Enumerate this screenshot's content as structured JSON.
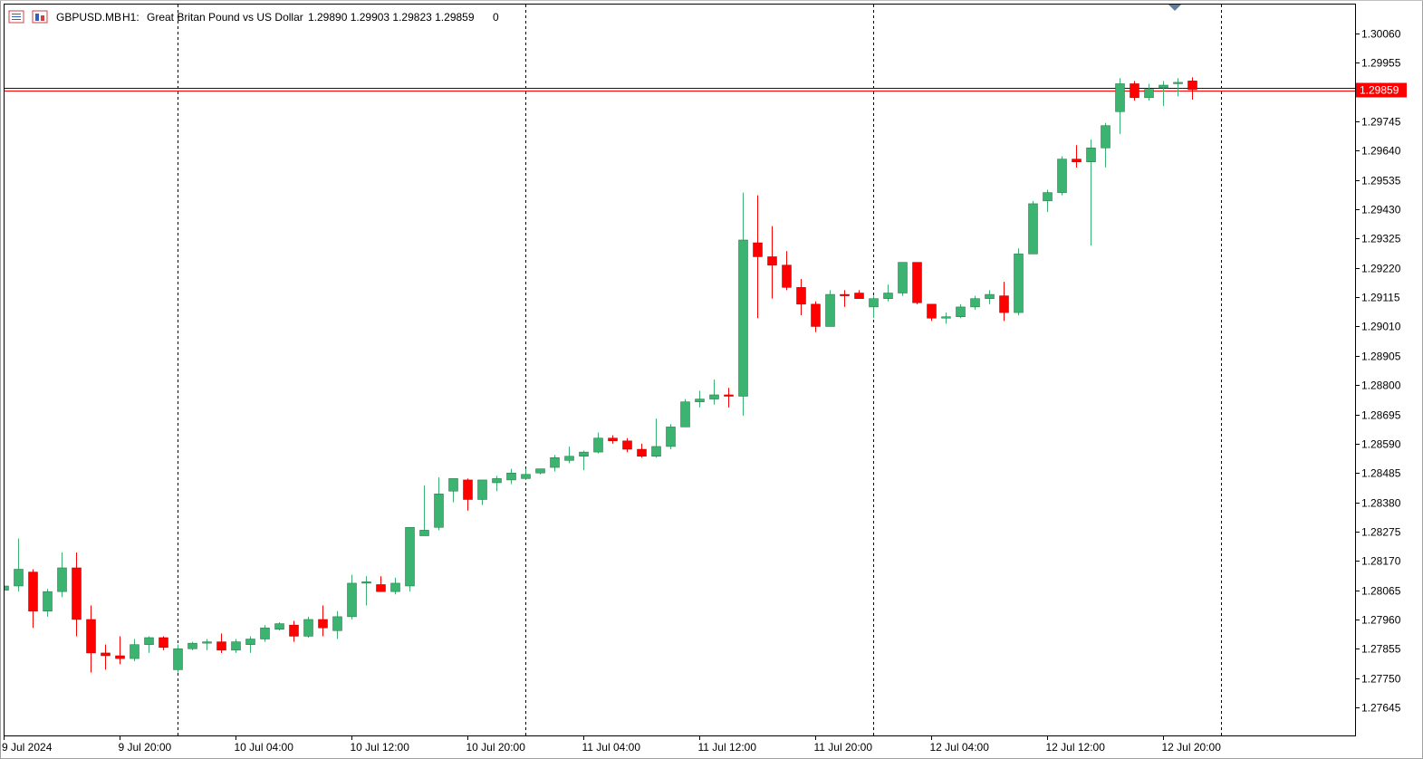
{
  "header": {
    "symbol": "GBPUSD.MB",
    "timeframe": "H1:",
    "description": "Great Britan Pound vs US Dollar",
    "ohlc": "1.29890 1.29903 1.29823 1.29859",
    "volume": "0"
  },
  "colors": {
    "bull": "#3cb371",
    "bear": "#ff0000",
    "bid_line": "#0000cd",
    "ask_line": "#ff0000",
    "price_tag_bg": "#ff0000",
    "price_tag_text": "#ffffff",
    "grid": "#000000"
  },
  "icons": {
    "chart_menu": "chart-menu-icon",
    "chart_window": "chart-window-icon",
    "shift_marker": "chart-shift-triangle-icon"
  },
  "current_price": "1.29859",
  "chart_data": {
    "type": "candlestick",
    "title": "GBPUSD.MB, H1: Great Britan Pound vs US Dollar",
    "ylim": [
      1.2758,
      1.3014
    ],
    "y_ticks": [
      "1.30060",
      "1.29955",
      "1.29850",
      "1.29745",
      "1.29640",
      "1.29535",
      "1.29430",
      "1.29325",
      "1.29220",
      "1.29115",
      "1.29010",
      "1.28905",
      "1.28800",
      "1.28695",
      "1.28590",
      "1.28485",
      "1.28380",
      "1.28275",
      "1.28170",
      "1.28065",
      "1.27960",
      "1.27855",
      "1.27750",
      "1.27645"
    ],
    "x_labels": [
      "9 Jul 2024",
      "9 Jul 20:00",
      "10 Jul 04:00",
      "10 Jul 12:00",
      "10 Jul 20:00",
      "11 Jul 04:00",
      "11 Jul 12:00",
      "11 Jul 20:00",
      "12 Jul 04:00",
      "12 Jul 12:00",
      "12 Jul 20:00"
    ],
    "day_separators": [
      "10 Jul 2024",
      "11 Jul 2024",
      "12 Jul 2024",
      "13 Jul 2024"
    ],
    "grid": false,
    "candles": [
      {
        "o": 1.28065,
        "h": 1.2809,
        "l": 1.2805,
        "c": 1.2808
      },
      {
        "o": 1.2808,
        "h": 1.2825,
        "l": 1.2806,
        "c": 1.2814
      },
      {
        "o": 1.2813,
        "h": 1.2814,
        "l": 1.2793,
        "c": 1.2799
      },
      {
        "o": 1.2799,
        "h": 1.2807,
        "l": 1.2797,
        "c": 1.2806
      },
      {
        "o": 1.2806,
        "h": 1.282,
        "l": 1.2804,
        "c": 1.28145
      },
      {
        "o": 1.28145,
        "h": 1.282,
        "l": 1.279,
        "c": 1.2796
      },
      {
        "o": 1.2796,
        "h": 1.2801,
        "l": 1.2777,
        "c": 1.2784
      },
      {
        "o": 1.2784,
        "h": 1.2787,
        "l": 1.2778,
        "c": 1.2783
      },
      {
        "o": 1.2783,
        "h": 1.279,
        "l": 1.278,
        "c": 1.2782
      },
      {
        "o": 1.2782,
        "h": 1.2789,
        "l": 1.2781,
        "c": 1.2787
      },
      {
        "o": 1.2787,
        "h": 1.279,
        "l": 1.2784,
        "c": 1.27895
      },
      {
        "o": 1.27895,
        "h": 1.279,
        "l": 1.2785,
        "c": 1.2786
      },
      {
        "o": 1.2778,
        "h": 1.2787,
        "l": 1.2777,
        "c": 1.27855
      },
      {
        "o": 1.27855,
        "h": 1.2788,
        "l": 1.2785,
        "c": 1.27875
      },
      {
        "o": 1.27875,
        "h": 1.2789,
        "l": 1.2785,
        "c": 1.2788
      },
      {
        "o": 1.2788,
        "h": 1.2791,
        "l": 1.2784,
        "c": 1.2785
      },
      {
        "o": 1.2785,
        "h": 1.2789,
        "l": 1.2784,
        "c": 1.2788
      },
      {
        "o": 1.2787,
        "h": 1.279,
        "l": 1.2784,
        "c": 1.2789
      },
      {
        "o": 1.2789,
        "h": 1.2794,
        "l": 1.2788,
        "c": 1.2793
      },
      {
        "o": 1.27925,
        "h": 1.2795,
        "l": 1.2792,
        "c": 1.27945
      },
      {
        "o": 1.2794,
        "h": 1.27955,
        "l": 1.2788,
        "c": 1.279
      },
      {
        "o": 1.279,
        "h": 1.2797,
        "l": 1.27895,
        "c": 1.2796
      },
      {
        "o": 1.2796,
        "h": 1.2801,
        "l": 1.279,
        "c": 1.2793
      },
      {
        "o": 1.2792,
        "h": 1.2799,
        "l": 1.2789,
        "c": 1.2797
      },
      {
        "o": 1.2797,
        "h": 1.2812,
        "l": 1.2796,
        "c": 1.2809
      },
      {
        "o": 1.2809,
        "h": 1.28115,
        "l": 1.2801,
        "c": 1.28095
      },
      {
        "o": 1.28085,
        "h": 1.28115,
        "l": 1.2806,
        "c": 1.2806
      },
      {
        "o": 1.2806,
        "h": 1.2811,
        "l": 1.2805,
        "c": 1.2809
      },
      {
        "o": 1.2808,
        "h": 1.2829,
        "l": 1.2806,
        "c": 1.2829
      },
      {
        "o": 1.2826,
        "h": 1.2844,
        "l": 1.2826,
        "c": 1.2828
      },
      {
        "o": 1.2829,
        "h": 1.2847,
        "l": 1.2828,
        "c": 1.2841
      },
      {
        "o": 1.2842,
        "h": 1.2846,
        "l": 1.2838,
        "c": 1.28465
      },
      {
        "o": 1.2846,
        "h": 1.28465,
        "l": 1.2835,
        "c": 1.2839
      },
      {
        "o": 1.2839,
        "h": 1.2846,
        "l": 1.2837,
        "c": 1.2846
      },
      {
        "o": 1.2845,
        "h": 1.28475,
        "l": 1.2842,
        "c": 1.28465
      },
      {
        "o": 1.2846,
        "h": 1.285,
        "l": 1.28445,
        "c": 1.28485
      },
      {
        "o": 1.28465,
        "h": 1.285,
        "l": 1.2846,
        "c": 1.2848
      },
      {
        "o": 1.28485,
        "h": 1.285,
        "l": 1.2848,
        "c": 1.285
      },
      {
        "o": 1.28505,
        "h": 1.2855,
        "l": 1.2849,
        "c": 1.2854
      },
      {
        "o": 1.2853,
        "h": 1.2858,
        "l": 1.2852,
        "c": 1.28545
      },
      {
        "o": 1.28545,
        "h": 1.28565,
        "l": 1.28495,
        "c": 1.2856
      },
      {
        "o": 1.2856,
        "h": 1.2863,
        "l": 1.28555,
        "c": 1.2861
      },
      {
        "o": 1.2861,
        "h": 1.2862,
        "l": 1.2859,
        "c": 1.286
      },
      {
        "o": 1.286,
        "h": 1.2861,
        "l": 1.2856,
        "c": 1.2857
      },
      {
        "o": 1.2857,
        "h": 1.2859,
        "l": 1.2854,
        "c": 1.28545
      },
      {
        "o": 1.28545,
        "h": 1.2868,
        "l": 1.2854,
        "c": 1.2858
      },
      {
        "o": 1.2858,
        "h": 1.2866,
        "l": 1.2857,
        "c": 1.2865
      },
      {
        "o": 1.2865,
        "h": 1.2875,
        "l": 1.2865,
        "c": 1.2874
      },
      {
        "o": 1.2874,
        "h": 1.2878,
        "l": 1.2872,
        "c": 1.2875
      },
      {
        "o": 1.2875,
        "h": 1.2882,
        "l": 1.2873,
        "c": 1.28765
      },
      {
        "o": 1.28765,
        "h": 1.2879,
        "l": 1.2872,
        "c": 1.2876
      },
      {
        "o": 1.2876,
        "h": 1.2949,
        "l": 1.2869,
        "c": 1.2932
      },
      {
        "o": 1.2931,
        "h": 1.2948,
        "l": 1.2904,
        "c": 1.2926
      },
      {
        "o": 1.2926,
        "h": 1.2937,
        "l": 1.2911,
        "c": 1.2923
      },
      {
        "o": 1.2923,
        "h": 1.2928,
        "l": 1.2914,
        "c": 1.2915
      },
      {
        "o": 1.2915,
        "h": 1.2918,
        "l": 1.2905,
        "c": 1.2909
      },
      {
        "o": 1.2909,
        "h": 1.291,
        "l": 1.2899,
        "c": 1.2901
      },
      {
        "o": 1.2901,
        "h": 1.2914,
        "l": 1.2901,
        "c": 1.29125
      },
      {
        "o": 1.29125,
        "h": 1.2914,
        "l": 1.2908,
        "c": 1.2912
      },
      {
        "o": 1.2913,
        "h": 1.2914,
        "l": 1.2911,
        "c": 1.2911
      },
      {
        "o": 1.2908,
        "h": 1.2912,
        "l": 1.2904,
        "c": 1.2911
      },
      {
        "o": 1.2911,
        "h": 1.2916,
        "l": 1.291,
        "c": 1.2913
      },
      {
        "o": 1.2913,
        "h": 1.2924,
        "l": 1.2912,
        "c": 1.2924
      },
      {
        "o": 1.2924,
        "h": 1.2924,
        "l": 1.2909,
        "c": 1.29095
      },
      {
        "o": 1.2909,
        "h": 1.2909,
        "l": 1.2903,
        "c": 1.2904
      },
      {
        "o": 1.2904,
        "h": 1.2906,
        "l": 1.2902,
        "c": 1.29045
      },
      {
        "o": 1.29045,
        "h": 1.2909,
        "l": 1.2904,
        "c": 1.2908
      },
      {
        "o": 1.2908,
        "h": 1.2912,
        "l": 1.2907,
        "c": 1.2911
      },
      {
        "o": 1.2911,
        "h": 1.2914,
        "l": 1.2909,
        "c": 1.29125
      },
      {
        "o": 1.2912,
        "h": 1.2917,
        "l": 1.2903,
        "c": 1.2906
      },
      {
        "o": 1.2906,
        "h": 1.2929,
        "l": 1.2905,
        "c": 1.2927
      },
      {
        "o": 1.2927,
        "h": 1.2946,
        "l": 1.2927,
        "c": 1.2945
      },
      {
        "o": 1.2946,
        "h": 1.295,
        "l": 1.2942,
        "c": 1.2949
      },
      {
        "o": 1.2949,
        "h": 1.2962,
        "l": 1.2948,
        "c": 1.2961
      },
      {
        "o": 1.2961,
        "h": 1.2966,
        "l": 1.2958,
        "c": 1.296
      },
      {
        "o": 1.296,
        "h": 1.2968,
        "l": 1.293,
        "c": 1.2965
      },
      {
        "o": 1.2965,
        "h": 1.2974,
        "l": 1.2958,
        "c": 1.2973
      },
      {
        "o": 1.2978,
        "h": 1.299,
        "l": 1.297,
        "c": 1.2988
      },
      {
        "o": 1.2988,
        "h": 1.2989,
        "l": 1.2982,
        "c": 1.2983
      },
      {
        "o": 1.2983,
        "h": 1.2988,
        "l": 1.2982,
        "c": 1.2986
      },
      {
        "o": 1.29865,
        "h": 1.2989,
        "l": 1.298,
        "c": 1.29875
      },
      {
        "o": 1.2988,
        "h": 1.299,
        "l": 1.29835,
        "c": 1.29885
      },
      {
        "o": 1.2989,
        "h": 1.29903,
        "l": 1.29823,
        "c": 1.29859
      }
    ]
  }
}
